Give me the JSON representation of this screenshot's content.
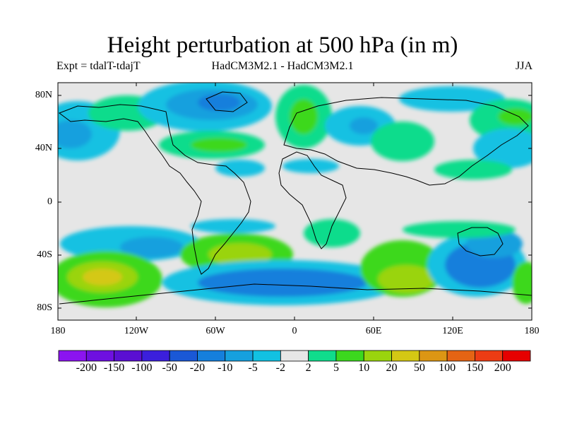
{
  "header": {
    "title": "Height perturbation at 500 hPa (in m)",
    "left": "Expt = tdalT-tdajT",
    "center": "HadCM3M2.1 - HadCM3M2.1",
    "right": "JJA"
  },
  "map": {
    "lat_ticks": [
      "80N",
      "40N",
      "0",
      "40S",
      "80S"
    ],
    "lon_ticks": [
      "180",
      "120W",
      "60W",
      "0",
      "60E",
      "120E",
      "180"
    ],
    "background_color": "#e6e6e6"
  },
  "colorbar": {
    "labels": [
      "-200",
      "-150",
      "-100",
      "-50",
      "-20",
      "-10",
      "-5",
      "-2",
      "2",
      "5",
      "10",
      "20",
      "50",
      "100",
      "150",
      "200"
    ],
    "colors": [
      "#8b14f0",
      "#6e10e0",
      "#5a0fd2",
      "#3b1fdc",
      "#1a58d6",
      "#157fdc",
      "#16a0de",
      "#12c1e2",
      "#e6e6e6",
      "#10dc8c",
      "#3cd81e",
      "#9ad40e",
      "#d4c814",
      "#dc9614",
      "#e46414",
      "#ec3c14",
      "#e60000"
    ]
  }
}
